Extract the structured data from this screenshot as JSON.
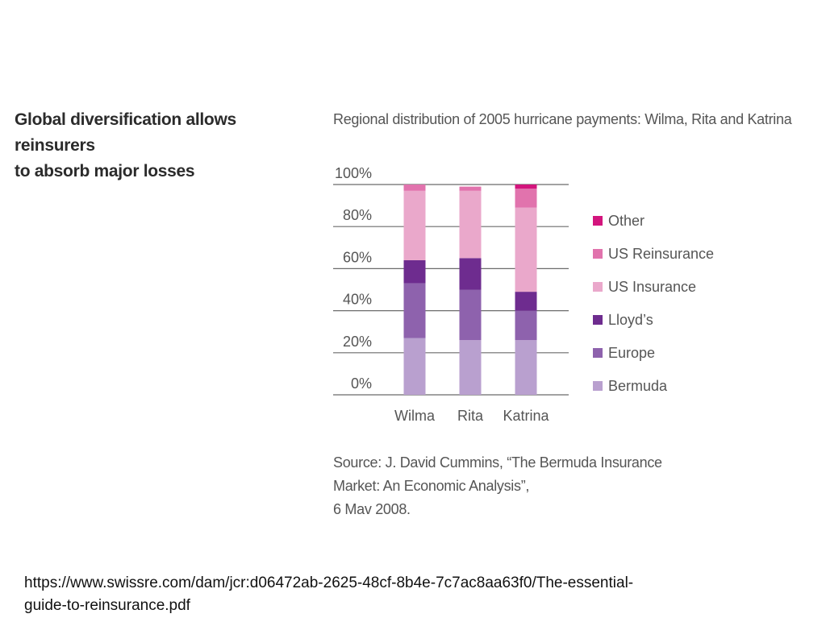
{
  "slide": {
    "title_lines": [
      "Global diversification allows reinsurers",
      "to absorb major losses"
    ],
    "source_lines": [
      "Source: J. David Cummins, “The Bermuda Insurance",
      "Market: An Economic Analysis”,",
      "6 Mav 2008."
    ],
    "url_lines": [
      "https://www.swissre.com/dam/jcr:d06472ab-2625-48cf-8b4e-7c7ac8aa63f0/The-essential-",
      "guide-to-reinsurance.pdf"
    ]
  },
  "chart_data": {
    "type": "bar",
    "stacked": true,
    "title": "Regional distribution of 2005 hurricane payments: Wilma, Rita and Katrina",
    "categories": [
      "Wilma",
      "Rita",
      "Katrina"
    ],
    "yticks": [
      "0%",
      "20%",
      "40%",
      "60%",
      "80%",
      "100%"
    ],
    "ylim": [
      0,
      100
    ],
    "grid": true,
    "legend_position": "right",
    "series": [
      {
        "name": "Bermuda",
        "color": "#b9a0cf",
        "values": [
          27,
          26,
          26
        ]
      },
      {
        "name": "Europe",
        "color": "#8e62ad",
        "values": [
          26,
          24,
          14
        ]
      },
      {
        "name": "Lloyd’s",
        "color": "#6e2c8f",
        "values": [
          11,
          15,
          9
        ]
      },
      {
        "name": "US Insurance",
        "color": "#eaa8cb",
        "values": [
          33,
          32,
          40
        ]
      },
      {
        "name": "US Reinsurance",
        "color": "#e173ad",
        "values": [
          3,
          2,
          9
        ]
      },
      {
        "name": "Other",
        "color": "#d3157d",
        "values": [
          0,
          0,
          2
        ]
      }
    ],
    "legend_order": [
      "Other",
      "US Reinsurance",
      "US Insurance",
      "Lloyd’s",
      "Europe",
      "Bermuda"
    ]
  }
}
